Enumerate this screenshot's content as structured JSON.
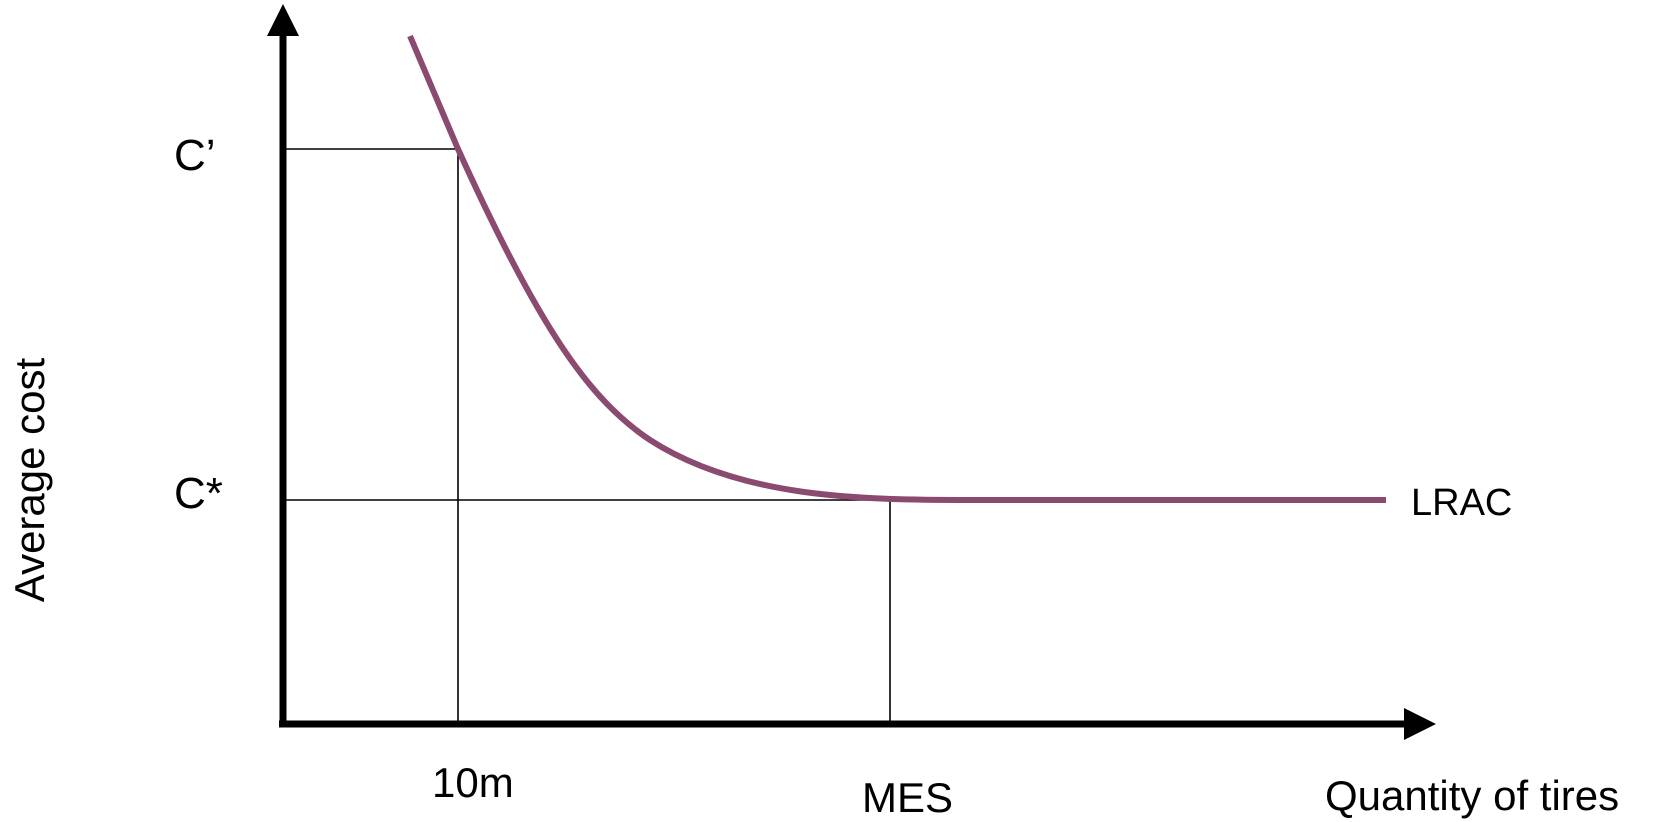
{
  "axes": {
    "y_label": "Average cost",
    "x_label": "Quantity of tires"
  },
  "y_ticks": {
    "c_prime": "C’",
    "c_star": "C*"
  },
  "x_ticks": {
    "ten_m": "10m",
    "mes": "MES"
  },
  "curve": {
    "name": "LRAC",
    "color": "#8B4A70"
  },
  "colors": {
    "axis": "#000000",
    "guide_lines": "#000000",
    "background": "#ffffff"
  }
}
